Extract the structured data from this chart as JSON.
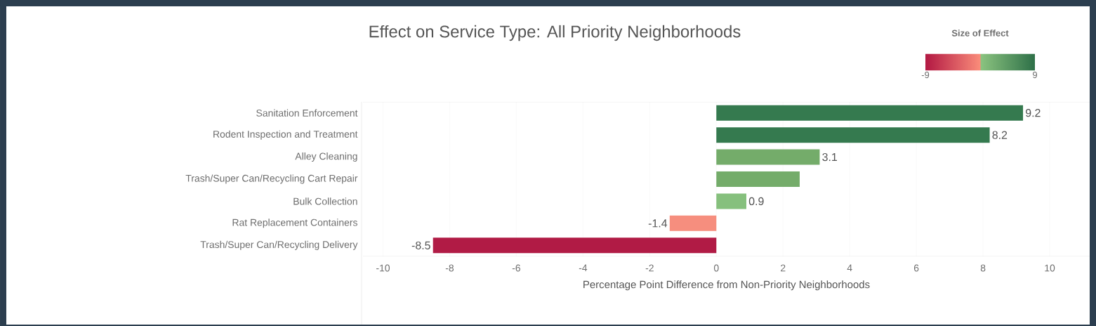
{
  "chart_data": {
    "type": "bar",
    "orientation": "horizontal",
    "title": "Effect on Service Type: All Priority Neighborhoods",
    "xlabel": "Percentage Point Difference from Non-Priority Neighborhoods",
    "categories": [
      "Sanitation Enforcement",
      "Rodent Inspection and Treatment",
      "Alley Cleaning",
      "Trash/Super Can/Recycling Cart Repair",
      "Bulk Collection",
      "Rat Replacement Containers",
      "Trash/Super Can/Recycling Delivery"
    ],
    "values": [
      9.2,
      8.2,
      3.1,
      2.5,
      0.9,
      -1.4,
      -8.5
    ],
    "value_labels": [
      "9.2",
      "8.2",
      "3.1",
      null,
      "0.9",
      "-1.4",
      "-8.5"
    ],
    "colors": [
      "#357a4f",
      "#357a4f",
      "#74ac6a",
      "#74ac6a",
      "#86c07d",
      "#f68e7e",
      "#b11b45"
    ],
    "xlim": [
      -10.6,
      11.2
    ],
    "xticks": [
      -10,
      -8,
      -6,
      -4,
      -2,
      0,
      2,
      4,
      6,
      8,
      10
    ],
    "grid": "x",
    "clabel": "Size of Effect",
    "clim": [
      -9,
      9
    ],
    "cticks": [
      -9,
      9
    ]
  }
}
